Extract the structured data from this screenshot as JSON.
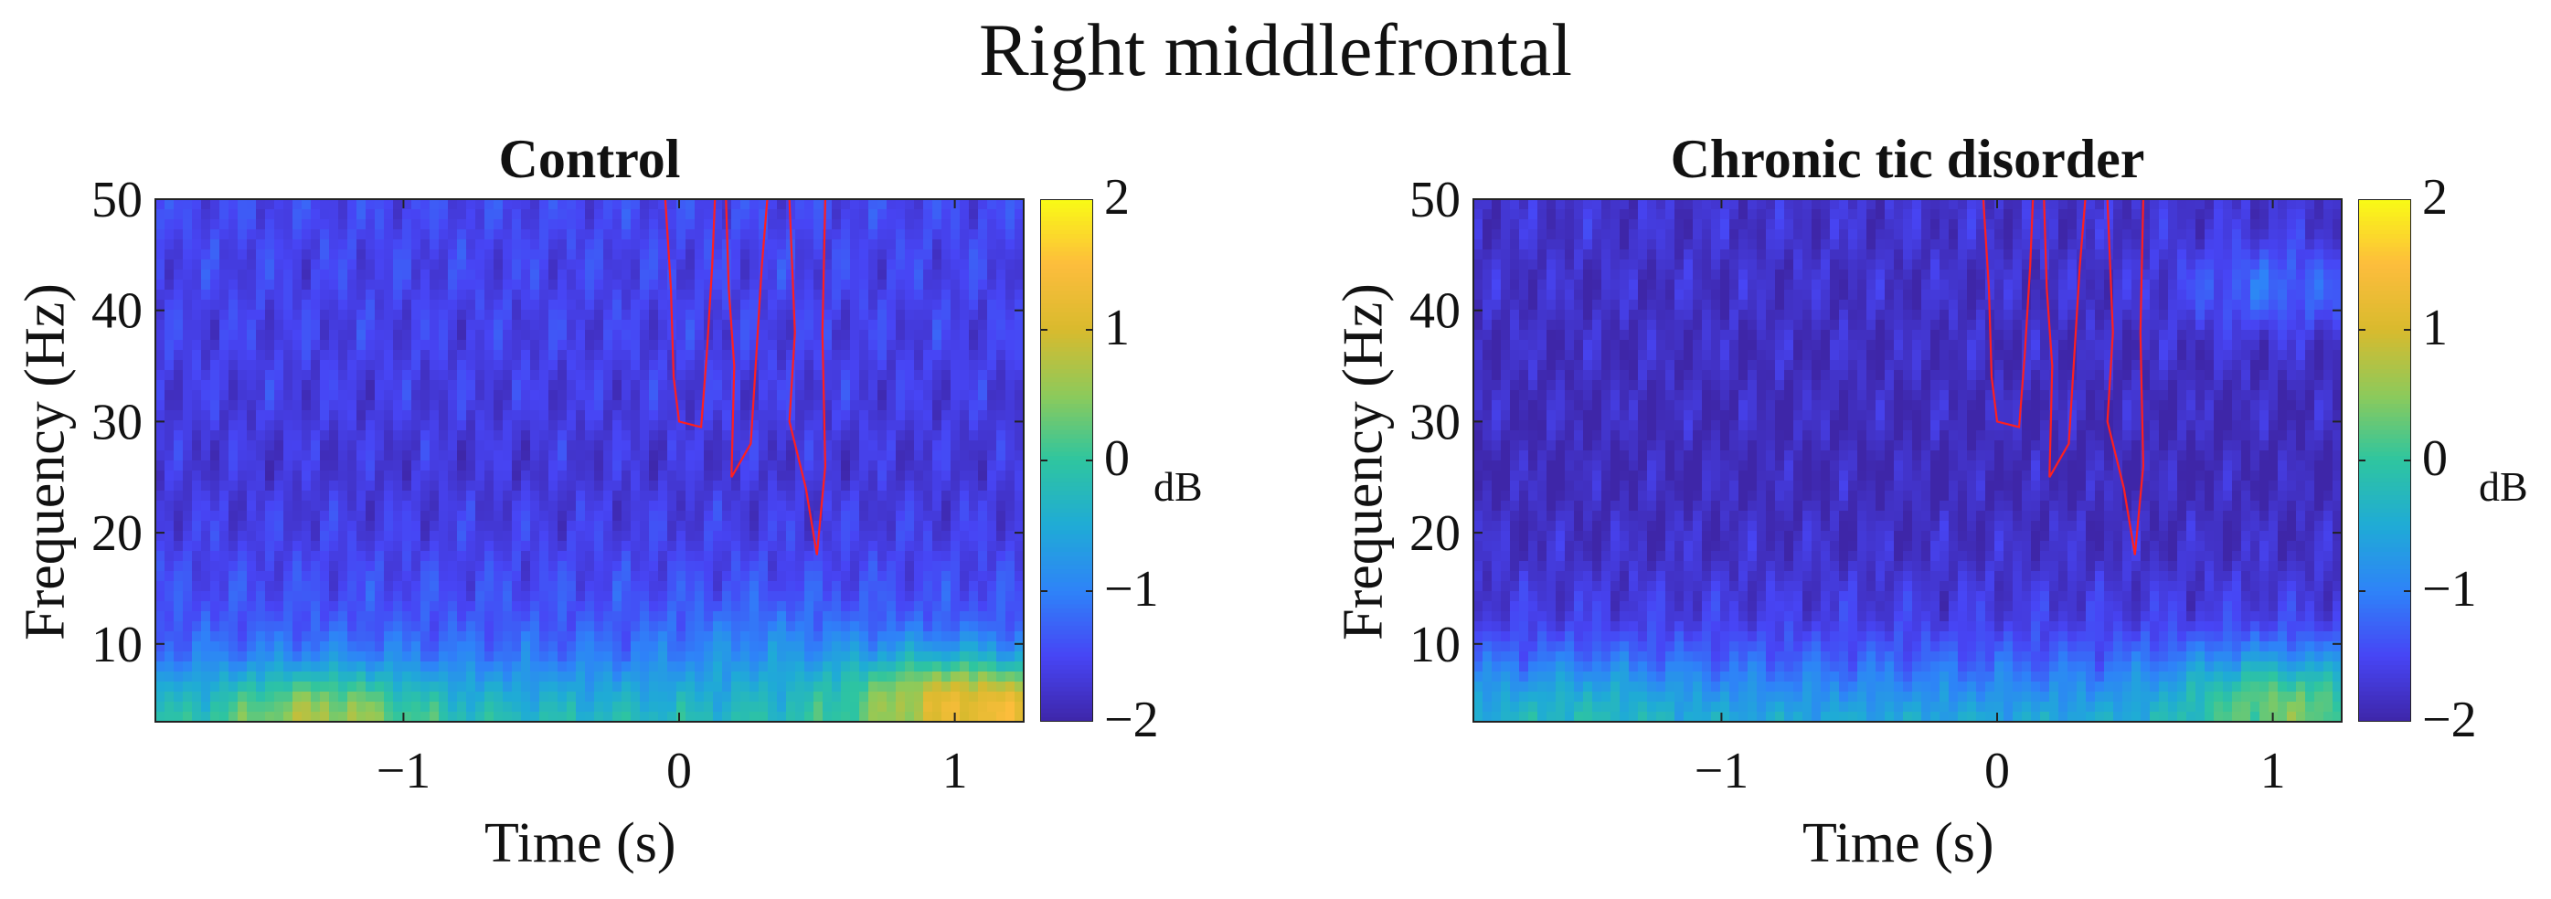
{
  "title": "Right middlefrontal",
  "colormap": [
    "#3e26a8",
    "#4745f5",
    "#2e83f8",
    "#1fabd6",
    "#2ec5a0",
    "#8dca5a",
    "#d9ba2e",
    "#fdbd3c",
    "#f9fb15"
  ],
  "contour_color": "#ff1f1f",
  "chart_data": [
    {
      "type": "heatmap",
      "title": "Control",
      "xlabel": "Time (s)",
      "ylabel": "Frequency (Hz)",
      "xlim": [
        -1.9,
        1.25
      ],
      "ylim": [
        3,
        50
      ],
      "xticks": [
        -1,
        0,
        1
      ],
      "xtick_labels": [
        "−1",
        "0",
        "1"
      ],
      "yticks": [
        10,
        20,
        30,
        40,
        50
      ],
      "ytick_labels": [
        "10",
        "20",
        "30",
        "40",
        "50"
      ],
      "colorbar": {
        "label": "dB",
        "range": [
          -2,
          2
        ],
        "ticks": [
          -2,
          -1,
          0,
          1,
          2
        ],
        "tick_labels": [
          "−2",
          "−1",
          "0",
          "1",
          "2"
        ]
      },
      "freq_profile": [
        {
          "freq": 3,
          "db": -0.2
        },
        {
          "freq": 6,
          "db": -0.6
        },
        {
          "freq": 9,
          "db": -1.1
        },
        {
          "freq": 12,
          "db": -1.35
        },
        {
          "freq": 18,
          "db": -1.55
        },
        {
          "freq": 25,
          "db": -1.7
        },
        {
          "freq": 35,
          "db": -1.6
        },
        {
          "freq": 50,
          "db": -1.5
        }
      ],
      "hotspots": [
        {
          "time": -1.3,
          "freq": 4,
          "db": 0.6
        },
        {
          "time": 0.9,
          "freq": 6,
          "db": 0.3
        },
        {
          "time": 1.2,
          "freq": 4,
          "db": 0.9
        },
        {
          "time": 0.3,
          "freq": 10,
          "db": -0.9
        }
      ],
      "significance_contours": [
        [
          [
            -0.05,
            50
          ],
          [
            -0.03,
            42
          ],
          [
            -0.02,
            34
          ],
          [
            0.0,
            30
          ],
          [
            0.08,
            29.5
          ],
          [
            0.1,
            36
          ],
          [
            0.12,
            44
          ],
          [
            0.13,
            50
          ]
        ],
        [
          [
            0.17,
            50
          ],
          [
            0.18,
            42
          ],
          [
            0.2,
            35
          ],
          [
            0.19,
            25
          ],
          [
            0.26,
            28
          ],
          [
            0.28,
            36
          ],
          [
            0.3,
            44
          ],
          [
            0.32,
            50
          ]
        ],
        [
          [
            0.4,
            50
          ],
          [
            0.42,
            38
          ],
          [
            0.4,
            30
          ],
          [
            0.46,
            24
          ],
          [
            0.5,
            18
          ],
          [
            0.53,
            26
          ],
          [
            0.52,
            38
          ],
          [
            0.53,
            50
          ]
        ]
      ]
    },
    {
      "type": "heatmap",
      "title": "Chronic tic disorder",
      "xlabel": "Time (s)",
      "ylabel": "Frequency (Hz)",
      "xlim": [
        -1.9,
        1.25
      ],
      "ylim": [
        3,
        50
      ],
      "xticks": [
        -1,
        0,
        1
      ],
      "xtick_labels": [
        "−1",
        "0",
        "1"
      ],
      "yticks": [
        10,
        20,
        30,
        40,
        50
      ],
      "ytick_labels": [
        "10",
        "20",
        "30",
        "40",
        "50"
      ],
      "colorbar": {
        "label": "dB",
        "range": [
          -2,
          2
        ],
        "ticks": [
          -2,
          -1,
          0,
          1,
          2
        ],
        "tick_labels": [
          "−2",
          "−1",
          "0",
          "1",
          "2"
        ]
      },
      "freq_profile": [
        {
          "freq": 3,
          "db": -0.5
        },
        {
          "freq": 6,
          "db": -0.9
        },
        {
          "freq": 9,
          "db": -1.3
        },
        {
          "freq": 12,
          "db": -1.6
        },
        {
          "freq": 18,
          "db": -1.8
        },
        {
          "freq": 25,
          "db": -1.9
        },
        {
          "freq": 35,
          "db": -1.85
        },
        {
          "freq": 50,
          "db": -1.75
        }
      ],
      "hotspots": [
        {
          "time": -1.5,
          "freq": 5,
          "db": -0.4
        },
        {
          "time": 0.95,
          "freq": 6,
          "db": -0.2
        },
        {
          "time": 1.15,
          "freq": 4,
          "db": -0.1
        },
        {
          "time": 1.0,
          "freq": 42,
          "db": -1.2
        }
      ],
      "significance_contours": [
        [
          [
            -0.05,
            50
          ],
          [
            -0.03,
            42
          ],
          [
            -0.02,
            34
          ],
          [
            0.0,
            30
          ],
          [
            0.08,
            29.5
          ],
          [
            0.1,
            36
          ],
          [
            0.12,
            44
          ],
          [
            0.13,
            50
          ]
        ],
        [
          [
            0.17,
            50
          ],
          [
            0.18,
            42
          ],
          [
            0.2,
            35
          ],
          [
            0.19,
            25
          ],
          [
            0.26,
            28
          ],
          [
            0.28,
            36
          ],
          [
            0.3,
            44
          ],
          [
            0.32,
            50
          ]
        ],
        [
          [
            0.4,
            50
          ],
          [
            0.42,
            38
          ],
          [
            0.4,
            30
          ],
          [
            0.46,
            24
          ],
          [
            0.5,
            18
          ],
          [
            0.53,
            26
          ],
          [
            0.52,
            38
          ],
          [
            0.53,
            50
          ]
        ]
      ]
    }
  ]
}
